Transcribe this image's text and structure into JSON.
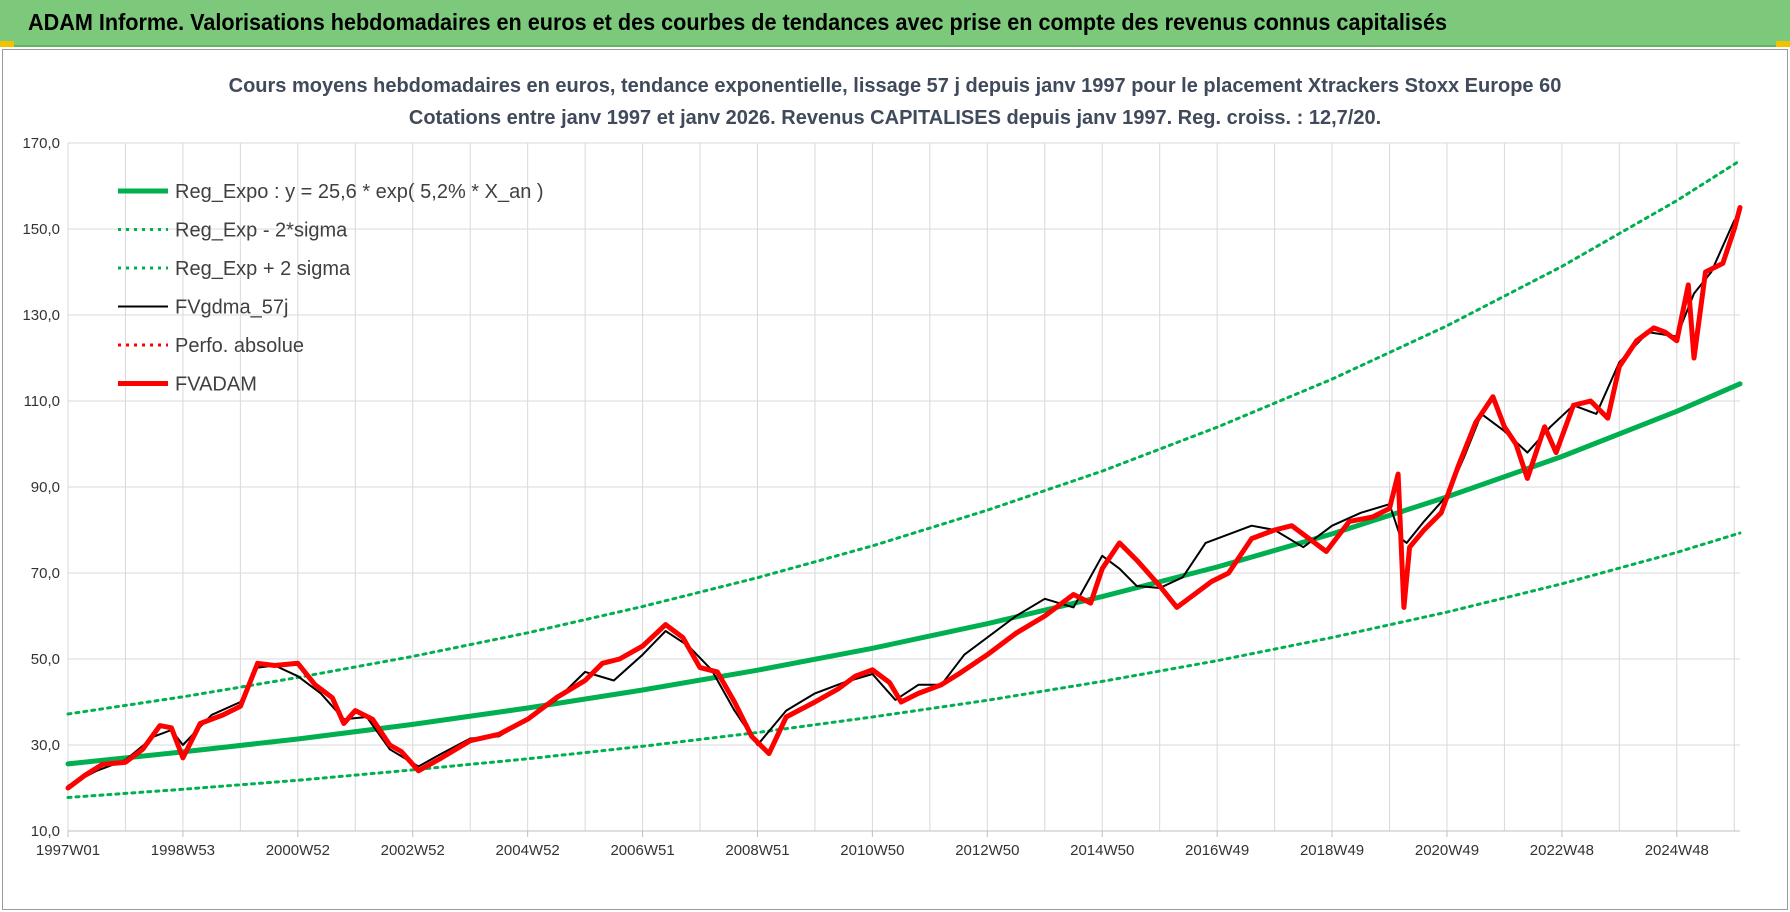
{
  "banner": {
    "title": "ADAM Informe. Valorisations hebdomadaires en euros et des courbes de tendances avec prise en compte des revenus connus capitalisés"
  },
  "colors": {
    "banner_bg": "#7dc97b",
    "reg_green": "#00b050",
    "fv_black": "#000000",
    "adam_red": "#ff0000",
    "grid": "#d9d9d9",
    "title_text": "#404a5a"
  },
  "chart_data": {
    "type": "line",
    "title_line1": "Cours moyens hebdomadaires en euros, tendance exponentielle, lissage 57 j depuis janv 1997 pour le placement Xtrackers Stoxx Europe 60",
    "title_line2": "Cotations entre janv 1997 et janv 2026. Revenus CAPITALISES depuis janv 1997. Reg. croiss. : 12,7/20.",
    "xlabel": "",
    "ylabel": "",
    "ylim": [
      10,
      170
    ],
    "xlim": [
      1997.0,
      2026.1
    ],
    "grid": true,
    "legend_position": "top-left",
    "y_ticks": [
      "10,0",
      "30,0",
      "50,0",
      "70,0",
      "90,0",
      "110,0",
      "130,0",
      "150,0",
      "170,0"
    ],
    "x_ticks": [
      {
        "label": "1997W01",
        "x": 1997.0
      },
      {
        "label": "1998W53",
        "x": 1999.0
      },
      {
        "label": "2000W52",
        "x": 2001.0
      },
      {
        "label": "2002W52",
        "x": 2003.0
      },
      {
        "label": "2004W52",
        "x": 2005.0
      },
      {
        "label": "2006W51",
        "x": 2007.0
      },
      {
        "label": "2008W51",
        "x": 2009.0
      },
      {
        "label": "2010W50",
        "x": 2011.0
      },
      {
        "label": "2012W50",
        "x": 2013.0
      },
      {
        "label": "2014W50",
        "x": 2015.0
      },
      {
        "label": "2016W49",
        "x": 2017.0
      },
      {
        "label": "2018W49",
        "x": 2019.0
      },
      {
        "label": "2020W49",
        "x": 2021.0
      },
      {
        "label": "2022W48",
        "x": 2023.0
      },
      {
        "label": "2024W48",
        "x": 2025.0
      }
    ],
    "series": [
      {
        "name": "Reg_Expo : y = 25,6 * exp( 5,2% *  X_an )",
        "style": "thick-solid",
        "color": "#00b050",
        "x": [
          1997.0,
          1999.0,
          2001.0,
          2003.0,
          2005.0,
          2007.0,
          2009.0,
          2011.0,
          2013.0,
          2015.0,
          2017.0,
          2019.0,
          2021.0,
          2023.0,
          2025.0,
          2026.1
        ],
        "y": [
          25.6,
          28.4,
          31.4,
          34.8,
          38.6,
          42.8,
          47.4,
          52.5,
          58.2,
          64.5,
          71.4,
          79.1,
          87.7,
          97.1,
          107.6,
          114.0
        ]
      },
      {
        "name": "Reg_Exp - 2*sigma",
        "style": "dotted",
        "color": "#00b050",
        "x": [
          1997.0,
          1999.0,
          2001.0,
          2003.0,
          2005.0,
          2007.0,
          2009.0,
          2011.0,
          2013.0,
          2015.0,
          2017.0,
          2019.0,
          2021.0,
          2023.0,
          2025.0,
          2026.1
        ],
        "y": [
          17.8,
          19.7,
          21.8,
          24.2,
          26.8,
          29.7,
          32.9,
          36.5,
          40.4,
          44.8,
          49.6,
          55.0,
          60.9,
          67.5,
          74.8,
          79.3
        ]
      },
      {
        "name": "Reg_Exp + 2 sigma",
        "style": "dotted",
        "color": "#00b050",
        "x": [
          1997.0,
          1999.0,
          2001.0,
          2003.0,
          2005.0,
          2007.0,
          2009.0,
          2011.0,
          2013.0,
          2015.0,
          2017.0,
          2019.0,
          2021.0,
          2023.0,
          2025.0,
          2026.1
        ],
        "y": [
          37.2,
          41.2,
          45.7,
          50.6,
          56.1,
          62.2,
          68.9,
          76.3,
          84.6,
          93.7,
          103.9,
          115.1,
          127.5,
          141.3,
          156.6,
          165.9
        ]
      },
      {
        "name": "FVgdma_57j",
        "style": "solid",
        "color": "#000000",
        "x": [
          1997.0,
          1997.5,
          1998.0,
          1998.5,
          1998.8,
          1999.0,
          1999.5,
          2000.0,
          2000.3,
          2000.6,
          2001.0,
          2001.4,
          2001.8,
          2002.2,
          2002.6,
          2003.1,
          2003.5,
          2004.0,
          2004.5,
          2005.0,
          2005.5,
          2006.0,
          2006.5,
          2007.0,
          2007.4,
          2007.8,
          2008.2,
          2008.6,
          2009.0,
          2009.5,
          2010.0,
          2010.5,
          2011.0,
          2011.4,
          2011.8,
          2012.2,
          2012.6,
          2013.0,
          2013.5,
          2014.0,
          2014.5,
          2015.0,
          2015.3,
          2015.6,
          2016.0,
          2016.4,
          2016.8,
          2017.2,
          2017.6,
          2018.0,
          2018.5,
          2019.0,
          2019.5,
          2020.0,
          2020.2,
          2020.3,
          2020.6,
          2021.0,
          2021.3,
          2021.6,
          2022.0,
          2022.4,
          2022.8,
          2023.2,
          2023.6,
          2024.0,
          2024.5,
          2025.0,
          2025.3,
          2025.6,
          2026.0
        ],
        "y": [
          20.5,
          24.0,
          26.5,
          32.0,
          33.5,
          30.0,
          37.0,
          40.0,
          48.0,
          48.5,
          46.0,
          42.0,
          36.0,
          36.5,
          29.0,
          25.0,
          28.0,
          31.5,
          32.0,
          36.0,
          40.5,
          47.0,
          45.0,
          51.0,
          56.5,
          53.0,
          47.5,
          38.0,
          30.0,
          38.0,
          42.0,
          44.5,
          46.5,
          40.5,
          44.0,
          44.0,
          51.0,
          55.0,
          60.0,
          64.0,
          62.0,
          74.0,
          71.0,
          67.0,
          66.5,
          69.0,
          77.0,
          79.0,
          81.0,
          80.0,
          76.0,
          81.0,
          84.0,
          86.0,
          78.0,
          77.0,
          82.0,
          88.0,
          97.0,
          107.0,
          103.0,
          98.0,
          104.0,
          109.0,
          107.0,
          119.0,
          126.0,
          125.0,
          135.0,
          140.0,
          152.0
        ]
      },
      {
        "name": "Perfo. absolue",
        "style": "dotted",
        "color": "#ff0000",
        "x": [],
        "y": []
      },
      {
        "name": "FVADAM",
        "style": "thick-solid",
        "color": "#ff0000",
        "x": [
          1997.0,
          1997.3,
          1997.6,
          1998.0,
          1998.3,
          1998.6,
          1998.8,
          1999.0,
          1999.3,
          1999.7,
          2000.0,
          2000.3,
          2000.6,
          2001.0,
          2001.3,
          2001.6,
          2001.8,
          2002.0,
          2002.3,
          2002.6,
          2002.8,
          2003.1,
          2003.5,
          2004.0,
          2004.5,
          2005.0,
          2005.5,
          2006.0,
          2006.3,
          2006.6,
          2007.0,
          2007.4,
          2007.7,
          2008.0,
          2008.3,
          2008.6,
          2008.9,
          2009.2,
          2009.5,
          2010.0,
          2010.4,
          2010.7,
          2011.0,
          2011.3,
          2011.5,
          2011.8,
          2012.2,
          2012.5,
          2013.0,
          2013.5,
          2014.0,
          2014.5,
          2014.8,
          2015.0,
          2015.3,
          2015.6,
          2016.0,
          2016.3,
          2016.6,
          2016.9,
          2017.2,
          2017.6,
          2018.0,
          2018.3,
          2018.6,
          2018.9,
          2019.3,
          2019.7,
          2020.0,
          2020.15,
          2020.25,
          2020.35,
          2020.6,
          2020.9,
          2021.2,
          2021.5,
          2021.8,
          2022.0,
          2022.2,
          2022.4,
          2022.7,
          2022.9,
          2023.2,
          2023.5,
          2023.8,
          2024.0,
          2024.3,
          2024.6,
          2024.8,
          2025.0,
          2025.2,
          2025.3,
          2025.5,
          2025.8,
          2026.0,
          2026.1
        ],
        "y": [
          20.0,
          23.0,
          25.5,
          26.0,
          29.0,
          34.5,
          34.0,
          27.0,
          35.0,
          37.0,
          39.0,
          49.0,
          48.5,
          49.0,
          44.0,
          41.0,
          35.0,
          38.0,
          36.0,
          30.0,
          28.5,
          24.0,
          27.0,
          31.0,
          32.5,
          36.0,
          41.0,
          45.0,
          49.0,
          50.0,
          53.0,
          58.0,
          55.0,
          48.0,
          47.0,
          40.0,
          32.0,
          28.0,
          36.5,
          40.0,
          43.0,
          46.0,
          47.5,
          44.5,
          40.0,
          42.0,
          44.0,
          46.5,
          51.0,
          56.0,
          60.0,
          65.0,
          63.0,
          71.0,
          77.0,
          73.0,
          67.0,
          62.0,
          65.0,
          68.0,
          70.0,
          78.0,
          80.0,
          81.0,
          78.0,
          75.0,
          82.0,
          83.0,
          85.0,
          93.0,
          62.0,
          76.0,
          80.0,
          84.0,
          95.0,
          105.0,
          111.0,
          104.0,
          100.0,
          92.0,
          104.0,
          98.0,
          109.0,
          110.0,
          106.0,
          118.0,
          124.0,
          127.0,
          126.0,
          124.0,
          137.0,
          120.0,
          140.0,
          142.0,
          150.0,
          155.0
        ]
      }
    ]
  }
}
